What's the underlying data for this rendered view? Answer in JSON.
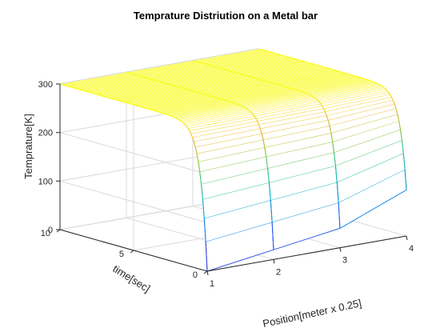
{
  "chart_data": {
    "type": "surface",
    "title": "Temprature Distriution on a Metal bar",
    "xlabel": "Position[meter x 0.25]",
    "ylabel": "time[sec]",
    "zlabel": "Temprature[K]",
    "xlim": [
      1,
      4
    ],
    "ylim": [
      0,
      10
    ],
    "zlim": [
      0,
      300
    ],
    "x_ticks": [
      1,
      2,
      3,
      4
    ],
    "y_ticks": [
      0,
      5,
      10
    ],
    "z_ticks": [
      0,
      100,
      200,
      300
    ],
    "x": [
      1,
      2,
      3,
      4
    ],
    "initial_temperature": 300,
    "boundary_temperature_at_t0": [
      0,
      20,
      40,
      95
    ],
    "colormap": "parula",
    "grid": true,
    "box": true
  }
}
